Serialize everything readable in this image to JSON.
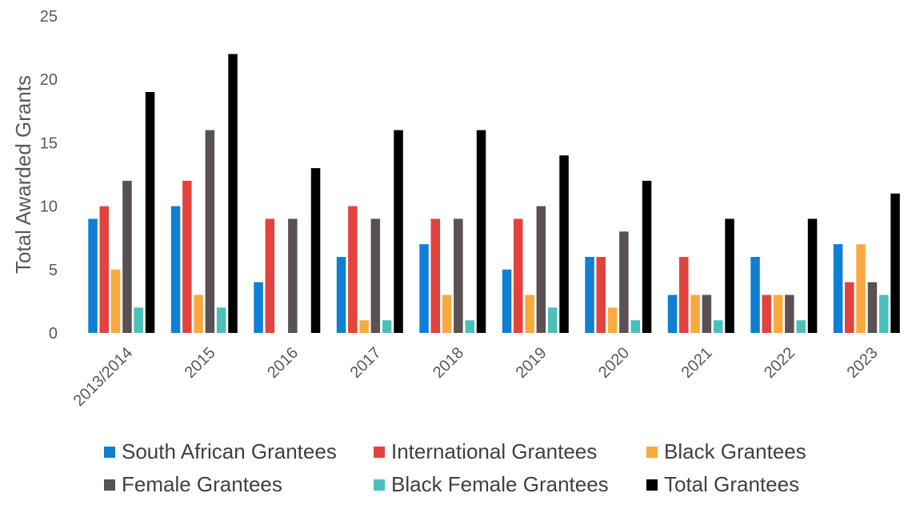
{
  "chart_data": {
    "type": "bar",
    "title": "",
    "xlabel": "",
    "ylabel": "Total Awarded Grants",
    "ylim": [
      0,
      25
    ],
    "yticks": [
      0,
      5,
      10,
      15,
      20,
      25
    ],
    "grid": false,
    "legend_position": "bottom",
    "categories": [
      "2013/2014",
      "2015",
      "2016",
      "2017",
      "2018",
      "2019",
      "2020",
      "2021",
      "2022",
      "2023"
    ],
    "series": [
      {
        "name": "South African Grantees",
        "color": "#0f7fd3",
        "values": [
          9,
          10,
          4,
          6,
          7,
          5,
          6,
          3,
          6,
          7
        ]
      },
      {
        "name": "International Grantees",
        "color": "#e2433e",
        "values": [
          10,
          12,
          9,
          10,
          9,
          9,
          6,
          6,
          3,
          4
        ]
      },
      {
        "name": "Black Grantees",
        "color": "#f9a93e",
        "values": [
          5,
          3,
          0,
          1,
          3,
          3,
          2,
          3,
          3,
          7
        ]
      },
      {
        "name": "Female Grantees",
        "color": "#595154",
        "values": [
          12,
          16,
          9,
          9,
          9,
          10,
          8,
          3,
          3,
          4
        ]
      },
      {
        "name": "Black Female Grantees",
        "color": "#4bc0bb",
        "values": [
          2,
          2,
          0,
          1,
          1,
          2,
          1,
          1,
          1,
          3
        ]
      },
      {
        "name": "Total Grantees",
        "color": "#000000",
        "values": [
          19,
          22,
          13,
          16,
          16,
          14,
          12,
          9,
          9,
          11
        ]
      }
    ]
  }
}
